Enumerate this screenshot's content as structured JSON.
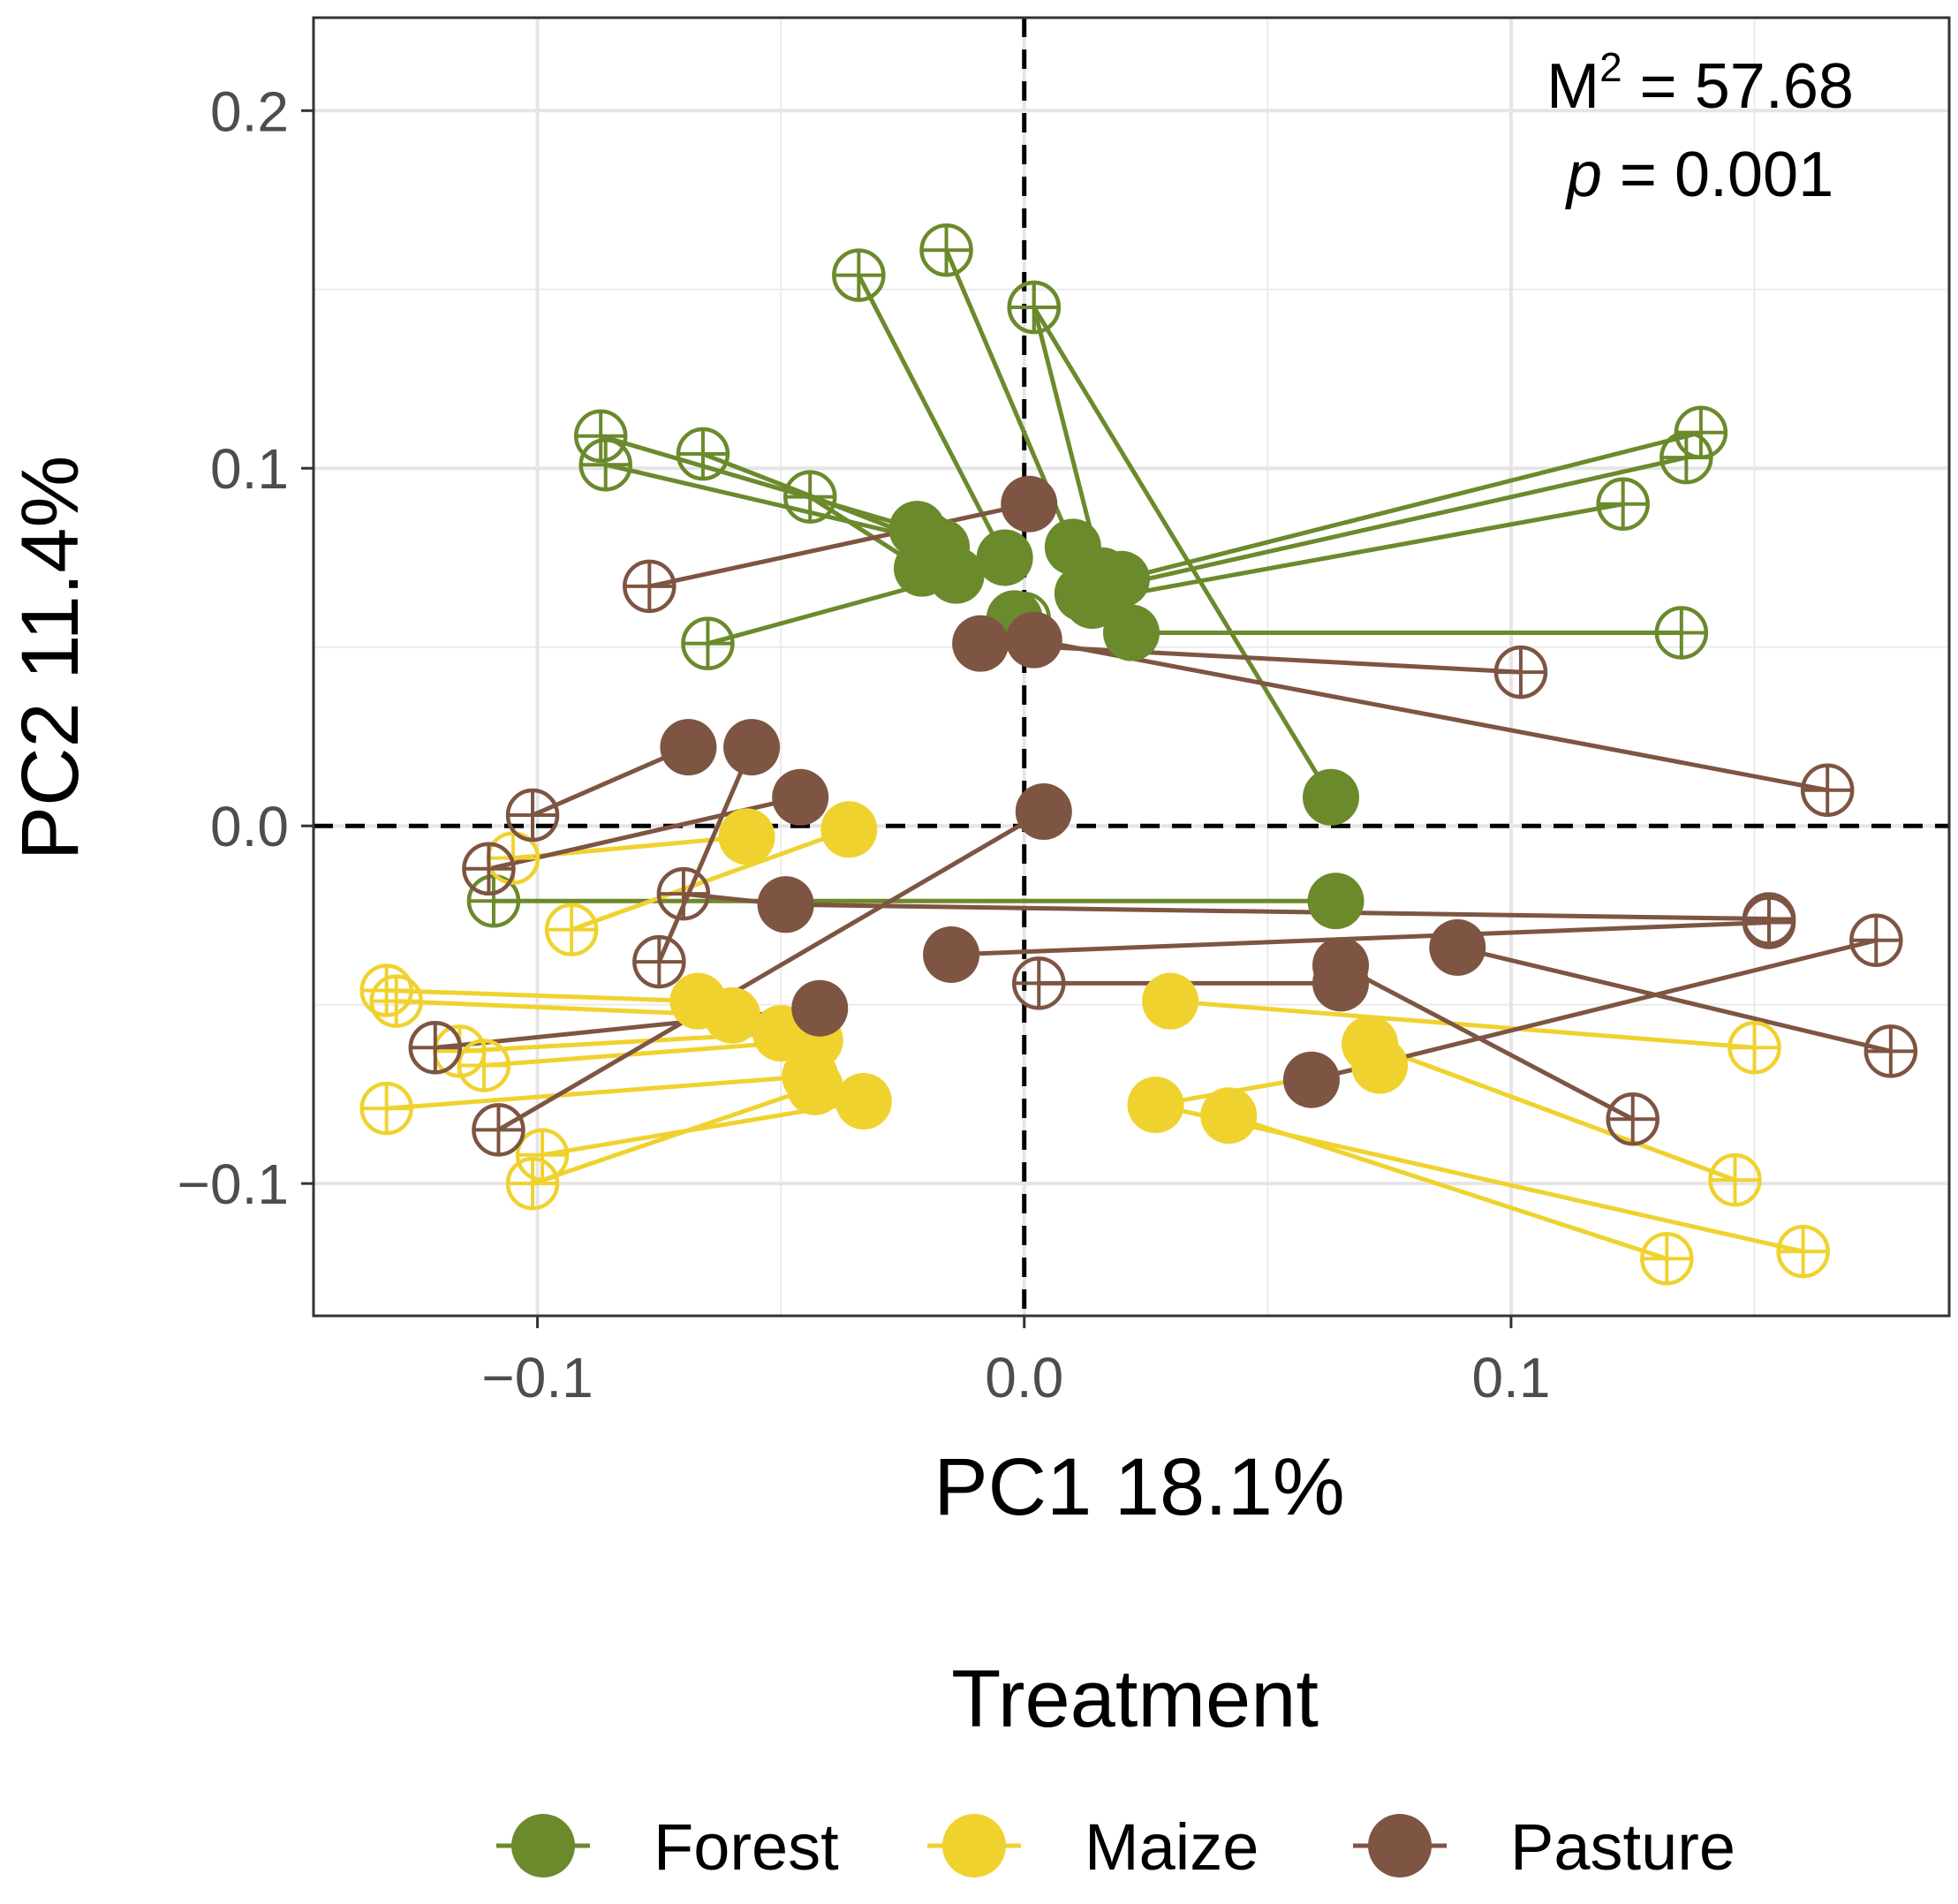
{
  "chart_data": {
    "type": "scatter",
    "subtype": "procrustes",
    "xlabel": "PC1 18.1%",
    "ylabel": "PC2 11.4%",
    "xlim": [
      -0.146,
      0.19
    ],
    "ylim": [
      -0.137,
      0.226
    ],
    "xticks": [
      -0.1,
      0.0,
      0.1
    ],
    "xtick_labels": [
      "−0.1",
      "0.0",
      "0.1"
    ],
    "yticks": [
      -0.1,
      0.0,
      0.1,
      0.2
    ],
    "ytick_labels": [
      "−0.1",
      "0.0",
      "0.1",
      "0.2"
    ],
    "grid": true,
    "reference_lines": {
      "x": 0,
      "y": 0,
      "style": "dashed"
    },
    "annotation": {
      "m2_label": "M",
      "m2_sup": "2",
      "m2_value": " = 57.68",
      "p_label": "p",
      "p_value": " = 0.001"
    },
    "legend": {
      "title": "Treatment",
      "position": "bottom",
      "entries": [
        "Forest",
        "Maize",
        "Pasture"
      ]
    },
    "colors": {
      "Forest": "#6b8a2c",
      "Maize": "#f0d22f",
      "Pasture": "#7d5542"
    },
    "series": [
      {
        "name": "Forest",
        "pairs": [
          {
            "x1": -0.022,
            "y1": 0.083,
            "x2": -0.087,
            "y2": 0.109
          },
          {
            "x1": -0.02,
            "y1": 0.08,
            "x2": -0.086,
            "y2": 0.101
          },
          {
            "x1": -0.017,
            "y1": 0.078,
            "x2": -0.066,
            "y2": 0.104
          },
          {
            "x1": -0.021,
            "y1": 0.072,
            "x2": -0.044,
            "y2": 0.092
          },
          {
            "x1": -0.014,
            "y1": 0.07,
            "x2": -0.065,
            "y2": 0.051
          },
          {
            "x1": -0.004,
            "y1": 0.075,
            "x2": -0.034,
            "y2": 0.154
          },
          {
            "x1": 0.01,
            "y1": 0.078,
            "x2": -0.016,
            "y2": 0.161
          },
          {
            "x1": 0.016,
            "y1": 0.07,
            "x2": 0.002,
            "y2": 0.145
          },
          {
            "x1": 0.02,
            "y1": 0.069,
            "x2": 0.139,
            "y2": 0.11
          },
          {
            "x1": 0.012,
            "y1": 0.065,
            "x2": 0.136,
            "y2": 0.103
          },
          {
            "x1": 0.014,
            "y1": 0.063,
            "x2": 0.123,
            "y2": 0.09
          },
          {
            "x1": 0.022,
            "y1": 0.054,
            "x2": 0.135,
            "y2": 0.054
          },
          {
            "x1": -0.002,
            "y1": 0.058,
            "x2": 0.0,
            "y2": 0.058
          },
          {
            "x1": 0.063,
            "y1": 0.008,
            "x2": 0.002,
            "y2": 0.145
          },
          {
            "x1": 0.064,
            "y1": -0.021,
            "x2": -0.109,
            "y2": -0.021
          }
        ]
      },
      {
        "name": "Maize",
        "pairs": [
          {
            "x1": -0.057,
            "y1": -0.003,
            "x2": -0.105,
            "y2": -0.009
          },
          {
            "x1": -0.036,
            "y1": -0.001,
            "x2": -0.093,
            "y2": -0.029
          },
          {
            "x1": -0.067,
            "y1": -0.049,
            "x2": -0.131,
            "y2": -0.046
          },
          {
            "x1": -0.06,
            "y1": -0.053,
            "x2": -0.129,
            "y2": -0.049
          },
          {
            "x1": -0.05,
            "y1": -0.058,
            "x2": -0.116,
            "y2": -0.063
          },
          {
            "x1": -0.043,
            "y1": -0.06,
            "x2": -0.111,
            "y2": -0.067
          },
          {
            "x1": -0.044,
            "y1": -0.07,
            "x2": -0.131,
            "y2": -0.079
          },
          {
            "x1": -0.033,
            "y1": -0.077,
            "x2": -0.099,
            "y2": -0.092
          },
          {
            "x1": -0.043,
            "y1": -0.073,
            "x2": -0.101,
            "y2": -0.1
          },
          {
            "x1": 0.03,
            "y1": -0.049,
            "x2": 0.15,
            "y2": -0.062
          },
          {
            "x1": 0.071,
            "y1": -0.061,
            "x2": 0.146,
            "y2": -0.099
          },
          {
            "x1": 0.073,
            "y1": -0.067,
            "x2": 0.027,
            "y2": -0.078
          },
          {
            "x1": 0.042,
            "y1": -0.081,
            "x2": 0.132,
            "y2": -0.121
          },
          {
            "x1": 0.027,
            "y1": -0.078,
            "x2": 0.16,
            "y2": -0.119
          }
        ]
      },
      {
        "name": "Pasture",
        "pairs": [
          {
            "x1": 0.001,
            "y1": 0.09,
            "x2": -0.077,
            "y2": 0.067
          },
          {
            "x1": -0.009,
            "y1": 0.051,
            "x2": 0.102,
            "y2": 0.043
          },
          {
            "x1": 0.002,
            "y1": 0.052,
            "x2": 0.165,
            "y2": 0.01
          },
          {
            "x1": -0.069,
            "y1": 0.022,
            "x2": -0.101,
            "y2": 0.003
          },
          {
            "x1": -0.056,
            "y1": 0.022,
            "x2": -0.075,
            "y2": -0.038
          },
          {
            "x1": -0.046,
            "y1": 0.008,
            "x2": -0.11,
            "y2": -0.012
          },
          {
            "x1": -0.049,
            "y1": -0.022,
            "x2": -0.07,
            "y2": -0.019
          },
          {
            "x1": -0.049,
            "y1": -0.022,
            "x2": 0.153,
            "y2": -0.026
          },
          {
            "x1": -0.015,
            "y1": -0.036,
            "x2": 0.153,
            "y2": -0.027
          },
          {
            "x1": 0.089,
            "y1": -0.034,
            "x2": 0.178,
            "y2": -0.063
          },
          {
            "x1": 0.065,
            "y1": -0.039,
            "x2": 0.125,
            "y2": -0.082
          },
          {
            "x1": 0.065,
            "y1": -0.044,
            "x2": 0.003,
            "y2": -0.044
          },
          {
            "x1": 0.059,
            "y1": -0.071,
            "x2": 0.175,
            "y2": -0.032
          },
          {
            "x1": -0.042,
            "y1": -0.051,
            "x2": -0.121,
            "y2": -0.062
          },
          {
            "x1": 0.004,
            "y1": 0.004,
            "x2": -0.108,
            "y2": -0.085
          }
        ]
      }
    ]
  }
}
